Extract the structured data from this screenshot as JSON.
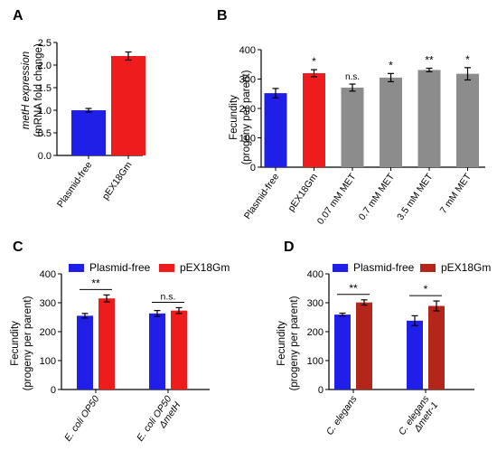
{
  "figure": {
    "colors": {
      "blue": "#1f1fe8",
      "red": "#ee1c1c",
      "red_dark": "#b5261a",
      "gray": "#8c8c8c",
      "error": "#000000"
    }
  },
  "chart_data": [
    {
      "panel": "A",
      "type": "bar",
      "categories": [
        "Plasmid-free",
        "pEX18Gm"
      ],
      "values": [
        1.0,
        2.2
      ],
      "errors": [
        0.04,
        0.09
      ],
      "bar_colors": [
        "blue",
        "red"
      ],
      "ylabel_lines": [
        "metH expression",
        "(mRNA fold change)"
      ],
      "ylim": [
        0,
        2.5
      ],
      "yticks": [
        "0.0",
        "0.5",
        "1.0",
        "1.5",
        "2.0",
        "2.5"
      ],
      "significance": [
        "",
        ""
      ],
      "legend": []
    },
    {
      "panel": "B",
      "type": "bar",
      "categories": [
        "Plasmid-free",
        "pEX18Gm",
        "0.07 mM MET",
        "0.7 mM MET",
        "3.5 mM MET",
        "7 mM MET"
      ],
      "values": [
        252,
        320,
        271,
        305,
        331,
        318
      ],
      "errors": [
        16,
        12,
        12,
        14,
        6,
        21
      ],
      "bar_colors": [
        "blue",
        "red",
        "gray",
        "gray",
        "gray",
        "gray"
      ],
      "ylabel_lines": [
        "Fecundity",
        "(progeny per parent)"
      ],
      "ylim": [
        0,
        400
      ],
      "yticks": [
        "0",
        "100",
        "200",
        "300",
        "400"
      ],
      "significance": [
        "",
        "*",
        "n.s.",
        "*",
        "**",
        "*"
      ],
      "legend": []
    },
    {
      "panel": "C",
      "type": "bar",
      "categories": [
        "E. coli OP50",
        "E. coli OP50 ΔmetH"
      ],
      "series": [
        {
          "name": "Plasmid-free",
          "values": [
            255,
            263
          ],
          "errors": [
            8,
            10
          ],
          "color": "blue"
        },
        {
          "name": "pEX18Gm",
          "values": [
            315,
            273
          ],
          "errors": [
            12,
            10
          ],
          "color": "red"
        }
      ],
      "ylabel_lines": [
        "Fecundity",
        "(progeny per parent)"
      ],
      "ylim": [
        0,
        400
      ],
      "yticks": [
        "0",
        "100",
        "200",
        "300",
        "400"
      ],
      "significance": [
        "**",
        "n.s."
      ],
      "legend_position": "top"
    },
    {
      "panel": "D",
      "type": "bar",
      "categories": [
        "C. elegans",
        "C. elegans Δmetr-1"
      ],
      "series": [
        {
          "name": "Plasmid-free",
          "values": [
            259,
            238
          ],
          "errors": [
            5,
            17
          ],
          "color": "blue"
        },
        {
          "name": "pEX18Gm",
          "values": [
            301,
            289
          ],
          "errors": [
            9,
            17
          ],
          "color": "red_dark"
        }
      ],
      "ylabel_lines": [
        "Fecundity",
        "(progeny per parent)"
      ],
      "ylim": [
        0,
        400
      ],
      "yticks": [
        "0",
        "100",
        "200",
        "300",
        "400"
      ],
      "significance": [
        "**",
        "*"
      ],
      "legend_position": "top"
    }
  ],
  "panels": {
    "A": {
      "letter": "A",
      "xtick_lines": [
        [
          "Plasmid-free"
        ],
        [
          "pEX18Gm"
        ]
      ]
    },
    "B": {
      "letter": "B",
      "xtick_lines": [
        [
          "Plasmid-free"
        ],
        [
          "pEX18Gm"
        ],
        [
          "0.07 mM MET"
        ],
        [
          "0.7 mM MET"
        ],
        [
          "3.5 mM MET"
        ],
        [
          "7 mM MET"
        ]
      ]
    },
    "C": {
      "letter": "C",
      "xtick_lines": [
        [
          "E. coli OP50"
        ],
        [
          "E. coli OP50",
          "ΔmetH"
        ]
      ]
    },
    "D": {
      "letter": "D",
      "xtick_lines": [
        [
          "C. elegans"
        ],
        [
          "C. elegans",
          "Δmetr-1"
        ]
      ]
    }
  }
}
